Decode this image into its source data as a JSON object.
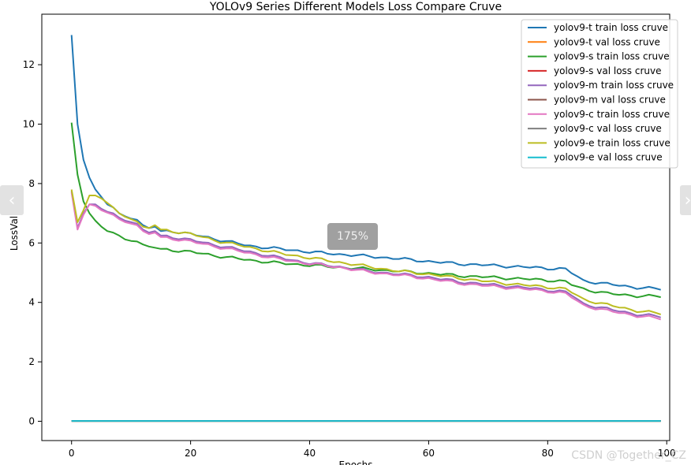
{
  "chart_data": {
    "type": "line",
    "title": "YOLOv9 Series Different Models Loss Compare Cruve",
    "xlabel": "Epochs",
    "ylabel": "LossValue",
    "xlim": [
      -5,
      100.5
    ],
    "ylim": [
      -0.65,
      13.7
    ],
    "xticks": [
      0,
      20,
      40,
      60,
      80,
      100
    ],
    "yticks": [
      0,
      2,
      4,
      6,
      8,
      10,
      12
    ],
    "grid": false,
    "legend_position": "top-right",
    "series": [
      {
        "name": "yolov9-t train loss cruve",
        "color": "#1f77b4",
        "knots": [
          [
            0,
            13.0
          ],
          [
            1,
            10.0
          ],
          [
            2,
            8.8
          ],
          [
            3,
            8.2
          ],
          [
            4,
            7.8
          ],
          [
            5,
            7.55
          ],
          [
            6,
            7.3
          ],
          [
            7,
            7.2
          ],
          [
            8,
            7.0
          ],
          [
            9,
            6.9
          ],
          [
            10,
            6.82
          ],
          [
            11,
            6.78
          ],
          [
            12,
            6.6
          ],
          [
            13,
            6.5
          ],
          [
            14,
            6.55
          ],
          [
            15,
            6.4
          ],
          [
            17,
            6.4
          ],
          [
            20,
            6.3
          ],
          [
            25,
            6.1
          ],
          [
            30,
            5.9
          ],
          [
            35,
            5.8
          ],
          [
            40,
            5.7
          ],
          [
            45,
            5.62
          ],
          [
            50,
            5.55
          ],
          [
            55,
            5.47
          ],
          [
            60,
            5.38
          ],
          [
            65,
            5.3
          ],
          [
            70,
            5.25
          ],
          [
            75,
            5.2
          ],
          [
            80,
            5.15
          ],
          [
            83,
            5.12
          ],
          [
            84,
            5.0
          ],
          [
            86,
            4.73
          ],
          [
            90,
            4.62
          ],
          [
            95,
            4.5
          ],
          [
            99,
            4.45
          ]
        ]
      },
      {
        "name": "yolov9-t val loss cruve",
        "color": "#ff7f0e",
        "knots": [
          [
            0,
            0.01
          ],
          [
            99,
            0.01
          ]
        ]
      },
      {
        "name": "yolov9-s train loss cruve",
        "color": "#2ca02c",
        "knots": [
          [
            0,
            10.05
          ],
          [
            1,
            8.3
          ],
          [
            2,
            7.4
          ],
          [
            3,
            7.0
          ],
          [
            4,
            6.75
          ],
          [
            5,
            6.55
          ],
          [
            6,
            6.4
          ],
          [
            7,
            6.35
          ],
          [
            8,
            6.25
          ],
          [
            9,
            6.12
          ],
          [
            10,
            6.07
          ],
          [
            11,
            6.05
          ],
          [
            12,
            5.95
          ],
          [
            13,
            5.88
          ],
          [
            15,
            5.8
          ],
          [
            20,
            5.7
          ],
          [
            25,
            5.55
          ],
          [
            30,
            5.42
          ],
          [
            35,
            5.32
          ],
          [
            40,
            5.25
          ],
          [
            45,
            5.18
          ],
          [
            50,
            5.12
          ],
          [
            55,
            5.05
          ],
          [
            60,
            4.98
          ],
          [
            65,
            4.9
          ],
          [
            70,
            4.85
          ],
          [
            75,
            4.8
          ],
          [
            80,
            4.75
          ],
          [
            83,
            4.7
          ],
          [
            84,
            4.6
          ],
          [
            86,
            4.45
          ],
          [
            90,
            4.3
          ],
          [
            95,
            4.22
          ],
          [
            99,
            4.2
          ]
        ]
      },
      {
        "name": "yolov9-s val loss cruve",
        "color": "#d62728",
        "knots": [
          [
            0,
            0.01
          ],
          [
            99,
            0.01
          ]
        ]
      },
      {
        "name": "yolov9-m train loss cruve",
        "color": "#9467bd",
        "knots": [
          [
            0,
            7.75
          ],
          [
            1,
            6.5
          ],
          [
            2,
            7.0
          ],
          [
            3,
            7.3
          ],
          [
            4,
            7.3
          ],
          [
            5,
            7.15
          ],
          [
            6,
            7.05
          ],
          [
            7,
            7.0
          ],
          [
            8,
            6.85
          ],
          [
            9,
            6.75
          ],
          [
            10,
            6.7
          ],
          [
            11,
            6.65
          ],
          [
            12,
            6.45
          ],
          [
            13,
            6.35
          ],
          [
            14,
            6.4
          ],
          [
            15,
            6.25
          ],
          [
            17,
            6.2
          ],
          [
            20,
            6.1
          ],
          [
            25,
            5.9
          ],
          [
            30,
            5.7
          ],
          [
            35,
            5.5
          ],
          [
            40,
            5.32
          ],
          [
            45,
            5.2
          ],
          [
            50,
            5.05
          ],
          [
            55,
            4.95
          ],
          [
            60,
            4.85
          ],
          [
            65,
            4.7
          ],
          [
            70,
            4.6
          ],
          [
            75,
            4.52
          ],
          [
            80,
            4.42
          ],
          [
            83,
            4.35
          ],
          [
            84,
            4.25
          ],
          [
            86,
            3.95
          ],
          [
            90,
            3.78
          ],
          [
            95,
            3.6
          ],
          [
            99,
            3.52
          ]
        ]
      },
      {
        "name": "yolov9-m val loss cruve",
        "color": "#8c564b",
        "knots": [
          [
            0,
            0.01
          ],
          [
            99,
            0.01
          ]
        ]
      },
      {
        "name": "yolov9-c train loss cruve",
        "color": "#e377c2",
        "knots": [
          [
            0,
            7.7
          ],
          [
            1,
            6.45
          ],
          [
            2,
            6.95
          ],
          [
            3,
            7.3
          ],
          [
            4,
            7.25
          ],
          [
            5,
            7.1
          ],
          [
            6,
            7.02
          ],
          [
            7,
            6.95
          ],
          [
            8,
            6.8
          ],
          [
            9,
            6.7
          ],
          [
            10,
            6.65
          ],
          [
            11,
            6.6
          ],
          [
            12,
            6.4
          ],
          [
            13,
            6.3
          ],
          [
            14,
            6.35
          ],
          [
            15,
            6.2
          ],
          [
            17,
            6.15
          ],
          [
            20,
            6.05
          ],
          [
            25,
            5.85
          ],
          [
            30,
            5.65
          ],
          [
            35,
            5.45
          ],
          [
            40,
            5.3
          ],
          [
            45,
            5.18
          ],
          [
            50,
            5.02
          ],
          [
            55,
            4.92
          ],
          [
            60,
            4.8
          ],
          [
            65,
            4.65
          ],
          [
            70,
            4.55
          ],
          [
            75,
            4.47
          ],
          [
            80,
            4.38
          ],
          [
            83,
            4.3
          ],
          [
            84,
            4.18
          ],
          [
            86,
            3.9
          ],
          [
            90,
            3.72
          ],
          [
            95,
            3.55
          ],
          [
            99,
            3.45
          ]
        ]
      },
      {
        "name": "yolov9-c val loss cruve",
        "color": "#7f7f7f",
        "knots": [
          [
            0,
            0.01
          ],
          [
            99,
            0.01
          ]
        ]
      },
      {
        "name": "yolov9-e train loss cruve",
        "color": "#bcbd22",
        "knots": [
          [
            0,
            7.8
          ],
          [
            1,
            6.7
          ],
          [
            2,
            7.1
          ],
          [
            3,
            7.6
          ],
          [
            4,
            7.6
          ],
          [
            5,
            7.5
          ],
          [
            6,
            7.35
          ],
          [
            7,
            7.2
          ],
          [
            8,
            7.0
          ],
          [
            9,
            6.88
          ],
          [
            10,
            6.8
          ],
          [
            11,
            6.72
          ],
          [
            12,
            6.55
          ],
          [
            13,
            6.5
          ],
          [
            14,
            6.6
          ],
          [
            15,
            6.45
          ],
          [
            17,
            6.4
          ],
          [
            20,
            6.3
          ],
          [
            25,
            6.05
          ],
          [
            30,
            5.85
          ],
          [
            35,
            5.65
          ],
          [
            40,
            5.5
          ],
          [
            45,
            5.35
          ],
          [
            50,
            5.2
          ],
          [
            55,
            5.05
          ],
          [
            60,
            4.95
          ],
          [
            65,
            4.82
          ],
          [
            70,
            4.7
          ],
          [
            75,
            4.6
          ],
          [
            80,
            4.52
          ],
          [
            83,
            4.45
          ],
          [
            84,
            4.35
          ],
          [
            86,
            4.1
          ],
          [
            90,
            3.92
          ],
          [
            95,
            3.72
          ],
          [
            99,
            3.62
          ]
        ]
      },
      {
        "name": "yolov9-e val loss cruve",
        "color": "#17becf",
        "knots": [
          [
            0,
            0.01
          ],
          [
            99,
            0.01
          ]
        ]
      }
    ]
  },
  "overlay": {
    "zoom_label": "175%",
    "prev_icon": "‹",
    "next_icon": "›",
    "watermark": "CSDN @Together_CZ"
  }
}
